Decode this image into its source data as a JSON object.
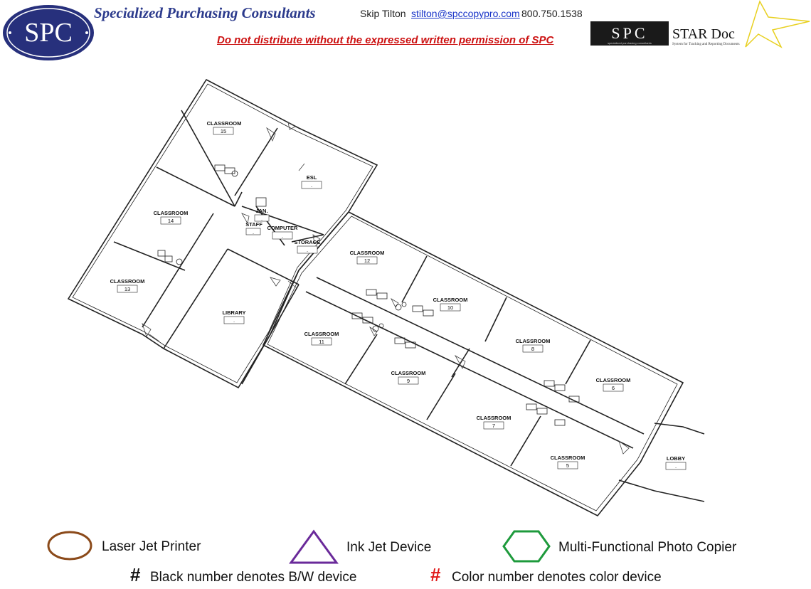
{
  "header": {
    "logo_text": "SPC",
    "company": "Specialized Purchasing Consultants",
    "contact_name": "Skip Tilton",
    "contact_email": "stilton@spccopypro.com",
    "contact_phone": "800.750.1538",
    "notice": "Do not distribute without the expressed written permission of SPC"
  },
  "stardoc_logo": {
    "spc_text": "SPC",
    "spc_subtext": "specialized purchasing consultants",
    "title": "STAR Doc",
    "subtitle": "System for Tracking and Reporting Documents"
  },
  "rooms": [
    {
      "name": "CLASSROOM",
      "number": "15"
    },
    {
      "name": "ESL",
      "number": "."
    },
    {
      "name": "CLASSROOM",
      "number": "14"
    },
    {
      "name": "JAN.",
      "number": "."
    },
    {
      "name": "STAFF",
      "number": "."
    },
    {
      "name": "COMPUTER",
      "number": "."
    },
    {
      "name": "STORAGE",
      "number": "."
    },
    {
      "name": "CLASSROOM",
      "number": "12"
    },
    {
      "name": "CLASSROOM",
      "number": "13"
    },
    {
      "name": "LIBRARY",
      "number": "."
    },
    {
      "name": "CLASSROOM",
      "number": "10"
    },
    {
      "name": "CLASSROOM",
      "number": "11"
    },
    {
      "name": "CLASSROOM",
      "number": "8"
    },
    {
      "name": "CLASSROOM",
      "number": "9"
    },
    {
      "name": "CLASSROOM",
      "number": "6"
    },
    {
      "name": "CLASSROOM",
      "number": "7"
    },
    {
      "name": "CLASSROOM",
      "number": "5"
    },
    {
      "name": "LOBBY",
      "number": "."
    }
  ],
  "legend": {
    "laser": "Laser Jet Printer",
    "inkjet": "Ink Jet Device",
    "mfp": "Multi-Functional Photo Copier",
    "bw_symbol": "#",
    "bw_text": "Black number denotes B/W device",
    "color_symbol": "#",
    "color_text": "Color number denotes color device",
    "colors": {
      "laser": "#8b4a1a",
      "inkjet": "#6a2a9a",
      "mfp": "#1e9a3c",
      "color_hash": "#e01616"
    }
  }
}
